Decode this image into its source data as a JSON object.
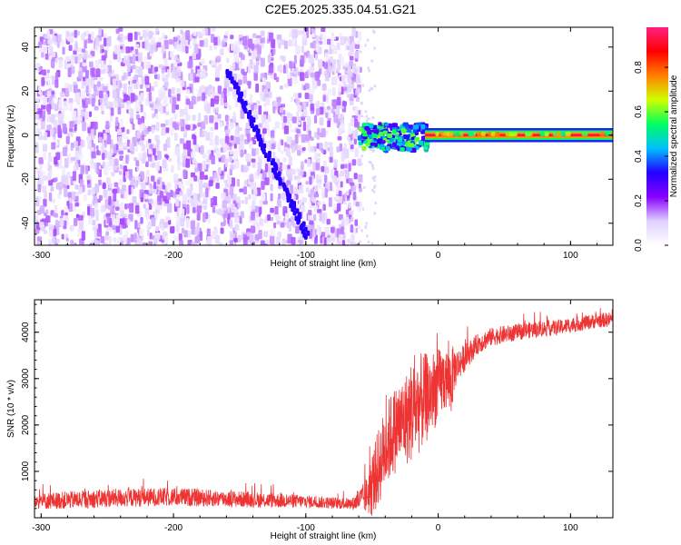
{
  "title": "C2E5.2025.335.04.51.G21",
  "chart_data": [
    {
      "type": "heatmap",
      "xlabel": "Height of straight line (km)",
      "ylabel": "Frequency (Hz)",
      "xlim": [
        -305,
        132
      ],
      "ylim": [
        -50,
        49
      ],
      "xticks": [
        -300,
        -200,
        -100,
        0,
        100
      ],
      "yticks": [
        -40,
        -20,
        0,
        20,
        40
      ],
      "colorbar": {
        "label": "Normalized spectral amplitude",
        "range": [
          0,
          0.98
        ],
        "ticks": [
          "0.0",
          "0.2",
          "0.4",
          "0.6",
          "0.8"
        ],
        "colors": [
          "#ffffff",
          "#e0d0ff",
          "#8800ff",
          "#2200ff",
          "#00c0ff",
          "#00ff60",
          "#d0ff00",
          "#ff8000",
          "#ff0000",
          "#ff2080"
        ]
      },
      "regions": [
        {
          "name": "noise",
          "x": [
            -305,
            -60
          ],
          "y": [
            -50,
            49
          ],
          "amplitude": 0.15
        },
        {
          "name": "signal-onset",
          "x": [
            -62,
            -10
          ],
          "y": [
            -6,
            6
          ],
          "amplitude": 0.45
        },
        {
          "name": "carrier",
          "x": [
            -10,
            132
          ],
          "y": [
            -1,
            1
          ],
          "amplitude": 0.95
        }
      ],
      "features": [
        {
          "name": "diagonal-streak",
          "x": [
            -160,
            -100
          ],
          "y": [
            30,
            -45
          ]
        }
      ]
    },
    {
      "type": "line",
      "xlabel": "Height of straight line (km)",
      "ylabel": "SNR (10 * v/v)",
      "xlim": [
        -305,
        132
      ],
      "ylim": [
        0,
        4700
      ],
      "xticks": [
        -300,
        -200,
        -100,
        0,
        100
      ],
      "yticks": [
        1000,
        2000,
        3000,
        4000
      ],
      "color": "#ee3333",
      "series": [
        {
          "x": [
            -305,
            -280,
            -250,
            -220,
            -200,
            -180,
            -150,
            -120,
            -100,
            -80,
            -65,
            -55,
            -50,
            -45,
            -40,
            -35,
            -30,
            -25,
            -20,
            -15,
            -10,
            -5,
            0,
            5,
            10,
            12,
            15,
            20,
            25,
            30,
            40,
            50,
            60,
            70,
            80,
            90,
            100,
            110,
            120,
            132
          ],
          "y": [
            350,
            380,
            420,
            440,
            450,
            430,
            400,
            370,
            350,
            320,
            300,
            450,
            700,
            1100,
            1500,
            1800,
            2000,
            2100,
            2300,
            2450,
            2550,
            2700,
            2850,
            3000,
            2950,
            3200,
            3300,
            3450,
            3600,
            3750,
            3900,
            3950,
            4000,
            4050,
            4080,
            4100,
            4150,
            4200,
            4250,
            4280
          ],
          "spread": [
            350,
            380,
            400,
            400,
            400,
            380,
            350,
            320,
            280,
            250,
            250,
            700,
            1400,
            1700,
            1800,
            1900,
            1900,
            2000,
            2200,
            2200,
            2000,
            1800,
            1600,
            1400,
            1500,
            1000,
            700,
            600,
            500,
            450,
            400,
            380,
            360,
            350,
            340,
            330,
            330,
            320,
            320,
            320
          ]
        }
      ]
    }
  ]
}
